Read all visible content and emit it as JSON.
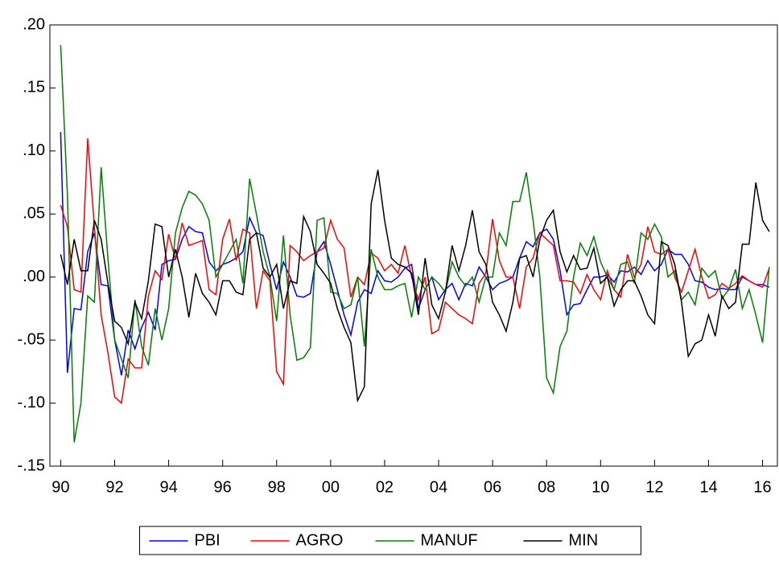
{
  "chart_data": {
    "type": "line",
    "x": [
      1990,
      1990.25,
      1990.5,
      1990.75,
      1991,
      1991.25,
      1991.5,
      1991.75,
      1992,
      1992.25,
      1992.5,
      1992.75,
      1993,
      1993.25,
      1993.5,
      1993.75,
      1994,
      1994.25,
      1994.5,
      1994.75,
      1995,
      1995.25,
      1995.5,
      1995.75,
      1996,
      1996.25,
      1996.5,
      1996.75,
      1997,
      1997.25,
      1997.5,
      1997.75,
      1998,
      1998.25,
      1998.5,
      1998.75,
      1999,
      1999.25,
      1999.5,
      1999.75,
      2000,
      2000.25,
      2000.5,
      2000.75,
      2001,
      2001.25,
      2001.5,
      2001.75,
      2002,
      2002.25,
      2002.5,
      2002.75,
      2003,
      2003.25,
      2003.5,
      2003.75,
      2004,
      2004.25,
      2004.5,
      2004.75,
      2005,
      2005.25,
      2005.5,
      2005.75,
      2006,
      2006.25,
      2006.5,
      2006.75,
      2007,
      2007.25,
      2007.5,
      2007.75,
      2008,
      2008.25,
      2008.5,
      2008.75,
      2009,
      2009.25,
      2009.5,
      2009.75,
      2010,
      2010.25,
      2010.5,
      2010.75,
      2011,
      2011.25,
      2011.5,
      2011.75,
      2012,
      2012.25,
      2012.5,
      2012.75,
      2013,
      2013.25,
      2013.5,
      2013.75,
      2014,
      2014.25,
      2014.5,
      2014.75,
      2015,
      2015.25,
      2015.5,
      2015.75,
      2016,
      2016.25
    ],
    "series": [
      {
        "name": "PBI",
        "color": "#0000ff",
        "values": [
          0.115,
          -0.076,
          -0.025,
          -0.026,
          0.02,
          0.035,
          -0.006,
          -0.007,
          -0.05,
          -0.078,
          -0.042,
          -0.057,
          -0.04,
          -0.028,
          -0.042,
          0.01,
          0.013,
          0.014,
          0.03,
          0.04,
          0.036,
          0.035,
          0.012,
          0.005,
          0.01,
          0.012,
          0.015,
          0.02,
          0.047,
          0.035,
          0.033,
          0.01,
          -0.01,
          0.012,
          0.0,
          -0.015,
          -0.016,
          -0.013,
          0.02,
          0.028,
          0.01,
          -0.01,
          -0.03,
          -0.046,
          -0.02,
          -0.01,
          -0.013,
          0.005,
          -0.003,
          -0.004,
          0.0,
          0.007,
          0.01,
          -0.025,
          -0.01,
          0.0,
          -0.018,
          -0.01,
          -0.005,
          -0.018,
          -0.005,
          -0.007,
          0.008,
          0.0,
          -0.01,
          -0.005,
          -0.003,
          0.0,
          0.015,
          0.028,
          0.024,
          0.035,
          0.038,
          0.03,
          0.005,
          -0.03,
          -0.022,
          -0.021,
          -0.01,
          0.0,
          0.0,
          0.002,
          -0.004,
          0.005,
          0.004,
          0.008,
          0.002,
          0.013,
          0.005,
          0.01,
          0.022,
          0.018,
          0.018,
          0.01,
          -0.003,
          -0.004,
          -0.008,
          -0.01,
          -0.009,
          -0.01,
          -0.01,
          0.0,
          -0.003,
          -0.006,
          -0.006,
          -0.008
        ]
      },
      {
        "name": "AGRO",
        "color": "#ff0000",
        "values": [
          0.057,
          0.04,
          -0.01,
          -0.012,
          0.11,
          0.04,
          -0.03,
          -0.06,
          -0.095,
          -0.1,
          -0.065,
          -0.072,
          -0.072,
          -0.015,
          0.005,
          -0.002,
          0.034,
          0.014,
          0.043,
          0.025,
          0.027,
          0.029,
          -0.01,
          -0.014,
          0.03,
          0.046,
          0.013,
          0.038,
          0.035,
          -0.025,
          0.005,
          -0.003,
          -0.075,
          -0.085,
          0.025,
          0.02,
          0.013,
          0.017,
          0.02,
          0.023,
          0.045,
          0.03,
          0.023,
          -0.016,
          0.0,
          -0.006,
          0.019,
          0.015,
          0.005,
          0.01,
          0.003,
          0.025,
          0.0,
          -0.018,
          0.0,
          -0.045,
          -0.042,
          -0.02,
          -0.025,
          -0.03,
          -0.033,
          -0.037,
          -0.005,
          0.003,
          0.046,
          0.013,
          0.0,
          0.0,
          -0.025,
          0.008,
          0.015,
          0.035,
          0.03,
          0.025,
          -0.003,
          -0.003,
          -0.004,
          -0.013,
          0.002,
          -0.01,
          -0.018,
          0.005,
          -0.01,
          -0.016,
          0.018,
          0.0,
          0.01,
          0.04,
          0.02,
          0.018,
          0.022,
          0.0,
          -0.012,
          0.005,
          0.022,
          0.0,
          -0.017,
          -0.014,
          -0.005,
          -0.009,
          -0.005,
          0.001,
          -0.003,
          -0.006,
          -0.008,
          0.007
        ]
      },
      {
        "name": "MANUF",
        "color": "#008000",
        "values": [
          0.184,
          0.065,
          -0.131,
          -0.1,
          -0.015,
          -0.02,
          0.087,
          0.015,
          -0.05,
          -0.065,
          -0.08,
          -0.018,
          -0.055,
          -0.07,
          -0.025,
          -0.05,
          -0.025,
          0.035,
          0.055,
          0.068,
          0.065,
          0.058,
          0.045,
          0.0,
          0.01,
          0.02,
          0.03,
          -0.005,
          0.078,
          0.05,
          0.02,
          0.0,
          -0.035,
          0.033,
          -0.03,
          -0.066,
          -0.064,
          -0.056,
          0.045,
          0.047,
          -0.012,
          -0.013,
          -0.025,
          -0.022,
          0.0,
          -0.055,
          0.022,
          0.0,
          -0.01,
          -0.01,
          -0.007,
          -0.005,
          -0.032,
          0.0,
          -0.01,
          0.0,
          -0.005,
          -0.012,
          0.012,
          0.0,
          -0.007,
          0.0,
          -0.02,
          0.0,
          0.0,
          0.035,
          0.025,
          0.06,
          0.06,
          0.083,
          0.045,
          0.0,
          -0.08,
          -0.092,
          -0.055,
          -0.043,
          0.0,
          0.027,
          0.017,
          0.032,
          0.012,
          0.0,
          -0.01,
          0.01,
          0.012,
          -0.005,
          0.035,
          0.03,
          0.042,
          0.032,
          0.0,
          0.005,
          -0.018,
          -0.012,
          -0.022,
          0.007,
          0.0,
          0.005,
          -0.017,
          -0.01,
          0.006,
          -0.025,
          -0.01,
          -0.03,
          -0.052,
          0.008
        ]
      },
      {
        "name": "MIN",
        "color": "#000000",
        "values": [
          0.018,
          -0.006,
          0.03,
          0.005,
          0.005,
          0.045,
          0.03,
          -0.005,
          -0.035,
          -0.04,
          -0.053,
          -0.02,
          -0.033,
          -0.003,
          0.042,
          0.04,
          0.0,
          0.022,
          0.0,
          -0.032,
          0.003,
          -0.013,
          -0.02,
          -0.03,
          -0.003,
          -0.003,
          -0.012,
          -0.014,
          0.03,
          0.035,
          0.007,
          0.0,
          0.01,
          -0.025,
          -0.003,
          -0.005,
          0.048,
          0.036,
          0.01,
          0.003,
          -0.005,
          -0.025,
          -0.04,
          -0.052,
          -0.098,
          -0.087,
          0.058,
          0.085,
          0.045,
          0.015,
          0.01,
          0.008,
          0.003,
          -0.03,
          0.015,
          -0.022,
          -0.033,
          -0.012,
          0.025,
          0.005,
          0.025,
          0.053,
          0.02,
          0.01,
          -0.02,
          -0.03,
          -0.043,
          -0.02,
          0.015,
          0.017,
          0.0,
          0.03,
          0.045,
          0.053,
          0.02,
          0.004,
          0.017,
          0.006,
          0.007,
          0.023,
          -0.005,
          0.0,
          -0.023,
          -0.01,
          -0.003,
          -0.003,
          -0.015,
          -0.03,
          -0.037,
          0.028,
          0.025,
          0.01,
          -0.02,
          -0.063,
          -0.053,
          -0.05,
          -0.03,
          -0.047,
          -0.015,
          -0.025,
          -0.02,
          0.026,
          0.026,
          0.075,
          0.045,
          0.036
        ]
      }
    ],
    "xlim": [
      1989.6,
      2016.55
    ],
    "xticks": [
      {
        "value": 1990,
        "label": "90"
      },
      {
        "value": 1992,
        "label": "92"
      },
      {
        "value": 1994,
        "label": "94"
      },
      {
        "value": 1996,
        "label": "96"
      },
      {
        "value": 1998,
        "label": "98"
      },
      {
        "value": 2000,
        "label": "00"
      },
      {
        "value": 2002,
        "label": "02"
      },
      {
        "value": 2004,
        "label": "04"
      },
      {
        "value": 2006,
        "label": "06"
      },
      {
        "value": 2008,
        "label": "08"
      },
      {
        "value": 2010,
        "label": "10"
      },
      {
        "value": 2012,
        "label": "12"
      },
      {
        "value": 2014,
        "label": "14"
      },
      {
        "value": 2016,
        "label": "16"
      }
    ],
    "ylim": [
      -0.15,
      0.2
    ],
    "yticks": [
      {
        "value": -0.15,
        "label": "-.15"
      },
      {
        "value": -0.1,
        "label": "-.10"
      },
      {
        "value": -0.05,
        "label": "-.05"
      },
      {
        "value": 0,
        "label": ".00"
      },
      {
        "value": 0.05,
        "label": ".05"
      },
      {
        "value": 0.1,
        "label": ".10"
      },
      {
        "value": 0.15,
        "label": ".15"
      },
      {
        "value": 0.2,
        "label": ".20"
      }
    ],
    "legend": "bottom"
  }
}
